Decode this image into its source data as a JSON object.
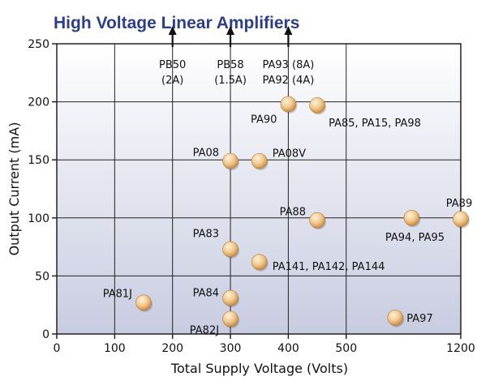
{
  "chart_data": {
    "type": "scatter",
    "title": "High Voltage Linear Amplifiers",
    "xlabel": "Total Supply Voltage (Volts)",
    "ylabel": "Output Current (mA)",
    "x_ticks": [
      0,
      100,
      200,
      300,
      400,
      500,
      1200
    ],
    "x_tick_labels": [
      "0",
      "100",
      "200",
      "300",
      "400",
      "500",
      "1200"
    ],
    "x_scale_note": "axis break between 500 and 1200",
    "y_ticks": [
      0,
      50,
      100,
      150,
      200,
      250
    ],
    "ylim": [
      0,
      250
    ],
    "grid": true,
    "points": [
      {
        "label": "PA81J",
        "x": 150,
        "y": 27
      },
      {
        "label": "PA84",
        "x": 300,
        "y": 31
      },
      {
        "label": "PA82J",
        "x": 300,
        "y": 13
      },
      {
        "label": "PA83",
        "x": 300,
        "y": 73
      },
      {
        "label": "PA08",
        "x": 300,
        "y": 149
      },
      {
        "label": "PA08V",
        "x": 350,
        "y": 149
      },
      {
        "label": "PA141, PA142, PA144",
        "x": 350,
        "y": 62
      },
      {
        "label": "PA90",
        "x": 400,
        "y": 198
      },
      {
        "label": "PA85, PA15, PA98",
        "x": 450,
        "y": 197
      },
      {
        "label": "PA88",
        "x": 450,
        "y": 98
      },
      {
        "label": "PA97",
        "x": 800,
        "y": 14
      },
      {
        "label": "PA94, PA95",
        "x": 900,
        "y": 100
      },
      {
        "label": "PA89",
        "x": 1200,
        "y": 99
      }
    ],
    "arrows": [
      {
        "x": 200,
        "lines": [
          "PB50",
          "(2A)"
        ]
      },
      {
        "x": 300,
        "lines": [
          "PB58",
          "(1.5A)"
        ]
      },
      {
        "x": 400,
        "lines": [
          "PA93 (8A)",
          "PA92 (4A)"
        ]
      }
    ],
    "colors": {
      "title": "#2f3f86",
      "plot_top": "#ffffff",
      "plot_bottom": "#c8cce0",
      "point_light": "#fff2d8",
      "point_mid": "#f0c890",
      "point_dark": "#c98a3e",
      "grid": "#222222"
    }
  }
}
